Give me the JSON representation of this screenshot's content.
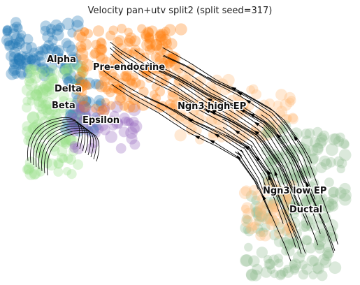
{
  "chart_data": {
    "type": "scatter",
    "title": "Velocity pan+utv split2 (split seed=317)",
    "xlabel": "",
    "ylabel": "",
    "axes_visible": false,
    "grid": false,
    "legend": "none",
    "overlay": "velocity streamlines with arrowheads",
    "clusters": [
      {
        "name": "Alpha",
        "color": "#1f77b4"
      },
      {
        "name": "Pre-endocrine",
        "color": "#ff7f0e"
      },
      {
        "name": "Delta",
        "color": "#1f77b4"
      },
      {
        "name": "Beta",
        "color": "#98df8a"
      },
      {
        "name": "Epsilon",
        "color": "#9467bd"
      },
      {
        "name": "Ngn3 high EP",
        "color": "#ffbb78"
      },
      {
        "name": "Ngn3 low EP",
        "color": "#8fbc8f"
      },
      {
        "name": "Ductal",
        "color": "#8fbc8f"
      }
    ]
  }
}
